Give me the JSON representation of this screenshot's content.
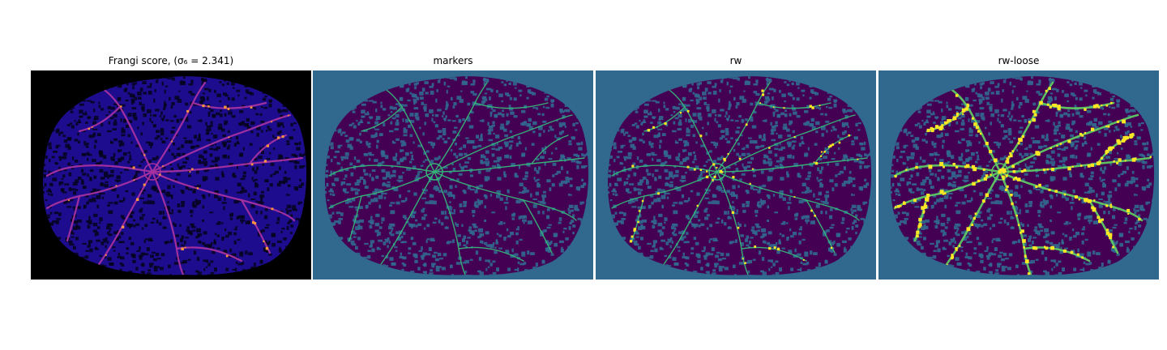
{
  "figure": {
    "panels": [
      {
        "id": "frangi",
        "title": "Frangi score, (σ₆ = 2.341)",
        "colormap": "plasma",
        "background": "#000000",
        "body": "#1d0d8e",
        "texture": "#06031c",
        "vessel": "#a631a0",
        "vessel_hi": "#f89540"
      },
      {
        "id": "markers",
        "title": "markers",
        "colormap": "viridis",
        "background": "#31688e",
        "body": "#440154",
        "texture": "#31688e",
        "vessel": "#35b779"
      },
      {
        "id": "rw",
        "title": "rw",
        "colormap": "viridis",
        "background": "#31688e",
        "body": "#440154",
        "texture": "#31688e",
        "vessel": "#35b779",
        "vessel_hi": "#fde725"
      },
      {
        "id": "rw-loose",
        "title": "rw-loose",
        "colormap": "viridis",
        "background": "#31688e",
        "body": "#440154",
        "texture": "#31688e",
        "vessel": "#5ec962",
        "vessel_hi": "#fde725"
      }
    ]
  }
}
